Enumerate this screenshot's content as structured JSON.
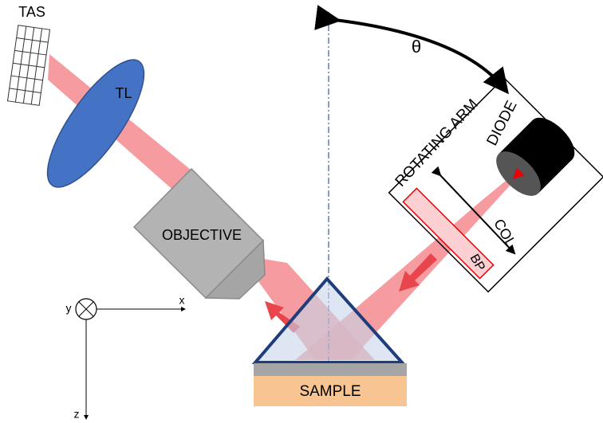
{
  "labels": {
    "tas": "TAS",
    "tl": "TL",
    "objective": "OBJECTIVE",
    "theta": "θ",
    "rotating_arm": "ROTATING ARM",
    "diode": "DIODE",
    "col": "COL",
    "bp": "BP",
    "sample": "SAMPLE",
    "axis_x": "x",
    "axis_y": "y",
    "axis_z": "z"
  }
}
